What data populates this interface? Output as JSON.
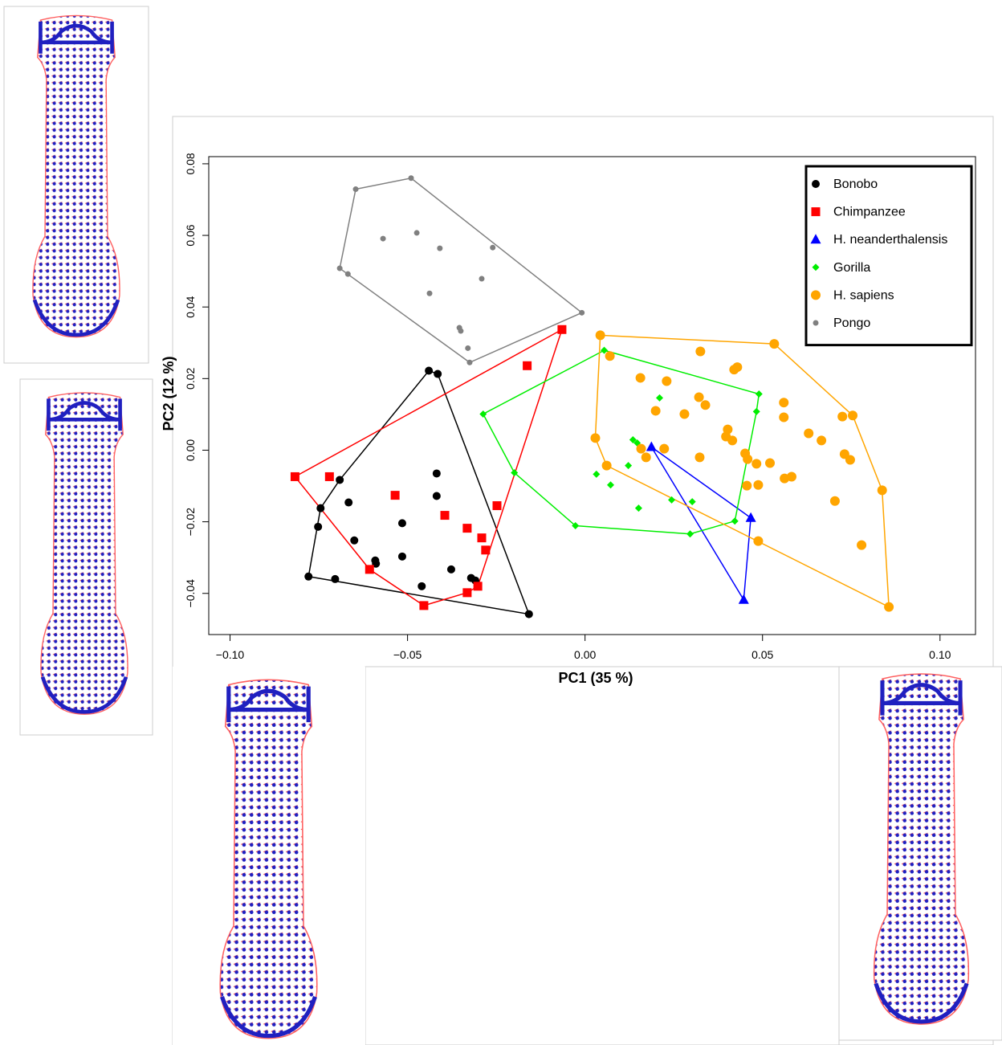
{
  "chart_data": {
    "type": "scatter",
    "x_label": "PC1 (35 %)",
    "y_label": "PC2 (12 %)",
    "xlim": [
      -0.106,
      0.11
    ],
    "ylim": [
      -0.0515,
      0.082
    ],
    "xticks": [
      {
        "value": -0.1,
        "label": "−0.10"
      },
      {
        "value": -0.05,
        "label": "−0.05"
      },
      {
        "value": 0,
        "label": "0.00"
      },
      {
        "value": 0.05,
        "label": "0.05"
      },
      {
        "value": 0.1,
        "label": "0.10"
      }
    ],
    "yticks": [
      {
        "value": -0.04,
        "label": "−0.04"
      },
      {
        "value": -0.02,
        "label": "−0.02"
      },
      {
        "value": 0,
        "label": "0.00"
      },
      {
        "value": 0.02,
        "label": "0.02"
      },
      {
        "value": 0.04,
        "label": "0.04"
      },
      {
        "value": 0.06,
        "label": "0.06"
      },
      {
        "value": 0.08,
        "label": "0.08"
      }
    ],
    "legend": "top-right",
    "hulls": true,
    "series": [
      {
        "name": "Bonobo",
        "color": "#000000",
        "marker": "circle",
        "x": [
          -0.044,
          -0.0415,
          -0.0691,
          -0.0745,
          -0.0752,
          -0.0666,
          -0.0418,
          -0.0418,
          -0.0515,
          -0.065,
          -0.0515,
          -0.0591,
          -0.0589,
          -0.0377,
          -0.0321,
          -0.0309,
          -0.046,
          -0.0779,
          -0.0704,
          -0.0158
        ],
        "values": [
          0.0222,
          0.0213,
          -0.0083,
          -0.0162,
          -0.0214,
          -0.0146,
          -0.0065,
          -0.0128,
          -0.0204,
          -0.0252,
          -0.0297,
          -0.0308,
          -0.0317,
          -0.0333,
          -0.0357,
          -0.0364,
          -0.038,
          -0.0353,
          -0.036,
          -0.0458
        ]
      },
      {
        "name": "Chimpanzee",
        "color": "#ff0000",
        "marker": "square",
        "x": [
          -0.0065,
          -0.0163,
          -0.0817,
          -0.072,
          -0.0535,
          -0.0395,
          -0.0332,
          -0.0291,
          -0.028,
          -0.0248,
          -0.0607,
          -0.0302,
          -0.0332,
          -0.0454
        ],
        "values": [
          0.0337,
          0.0236,
          -0.0074,
          -0.0074,
          -0.0126,
          -0.0182,
          -0.0218,
          -0.0245,
          -0.0279,
          -0.0155,
          -0.0333,
          -0.038,
          -0.0398,
          -0.0434
        ]
      },
      {
        "name": "H. neanderthalensis",
        "color": "#0000ff",
        "marker": "triangle",
        "x": [
          0.0187,
          0.0467,
          0.0447
        ],
        "values": [
          0.0009,
          -0.0189,
          -0.0418
        ]
      },
      {
        "name": "Gorilla",
        "color": "#00ee00",
        "marker": "diamond",
        "x": [
          0.0054,
          0.049,
          -0.0287,
          0.021,
          0.0483,
          0.0135,
          0.0147,
          -0.0199,
          0.0032,
          0.0122,
          0.0072,
          0.0151,
          0.0244,
          0.0302,
          0.0422,
          -0.0027,
          0.0296
        ],
        "values": [
          0.0279,
          0.0157,
          0.0101,
          0.0146,
          0.0108,
          0.0029,
          0.002,
          -0.0063,
          -0.0067,
          -0.0043,
          -0.0097,
          -0.0162,
          -0.0139,
          -0.0144,
          -0.0198,
          -0.0211,
          -0.0234
        ]
      },
      {
        "name": "H. sapiens",
        "color": "#ffa500",
        "marker": "bigcircle",
        "x": [
          0.0043,
          0.007,
          0.0533,
          0.0325,
          0.042,
          0.0429,
          0.0156,
          0.023,
          0.0321,
          0.0339,
          0.056,
          0.028,
          0.0199,
          0.0725,
          0.0754,
          0.0402,
          0.0397,
          0.063,
          0.0415,
          0.056,
          0.0029,
          0.0158,
          0.0223,
          0.0323,
          0.0451,
          0.0458,
          0.0666,
          0.0521,
          0.0483,
          0.0061,
          0.0172,
          0.0582,
          0.0562,
          0.0731,
          0.0747,
          0.0456,
          0.0488,
          0.0704,
          0.0837,
          0.0779,
          0.0488,
          0.0856
        ],
        "values": [
          0.0321,
          0.0263,
          0.0297,
          0.0276,
          0.0225,
          0.0232,
          0.0202,
          0.0193,
          0.0148,
          0.0126,
          0.0133,
          0.0101,
          0.011,
          0.0094,
          0.0097,
          0.0058,
          0.0038,
          0.0047,
          0.0027,
          0.0092,
          0.0034,
          0.0004,
          0.0004,
          -0.002,
          -0.0009,
          -0.0025,
          0.0027,
          -0.0036,
          -0.0038,
          -0.0043,
          -0.002,
          -0.0074,
          -0.0079,
          -0.0011,
          -0.0027,
          -0.0099,
          -0.0097,
          -0.0142,
          -0.0112,
          -0.0265,
          -0.0254,
          -0.0438
        ]
      },
      {
        "name": "Pongo",
        "color": "#808080",
        "marker": "smallcircle",
        "x": [
          -0.049,
          -0.0646,
          -0.0569,
          -0.0474,
          -0.0409,
          -0.026,
          -0.0291,
          -0.0691,
          -0.0668,
          -0.0438,
          -0.0009,
          -0.0354,
          -0.035,
          -0.033,
          -0.0325
        ],
        "values": [
          0.076,
          0.0729,
          0.0591,
          0.0607,
          0.0564,
          0.0566,
          0.0479,
          0.0508,
          0.0492,
          0.0438,
          0.0384,
          0.0342,
          0.0333,
          0.0285,
          0.0245
        ]
      }
    ]
  }
}
